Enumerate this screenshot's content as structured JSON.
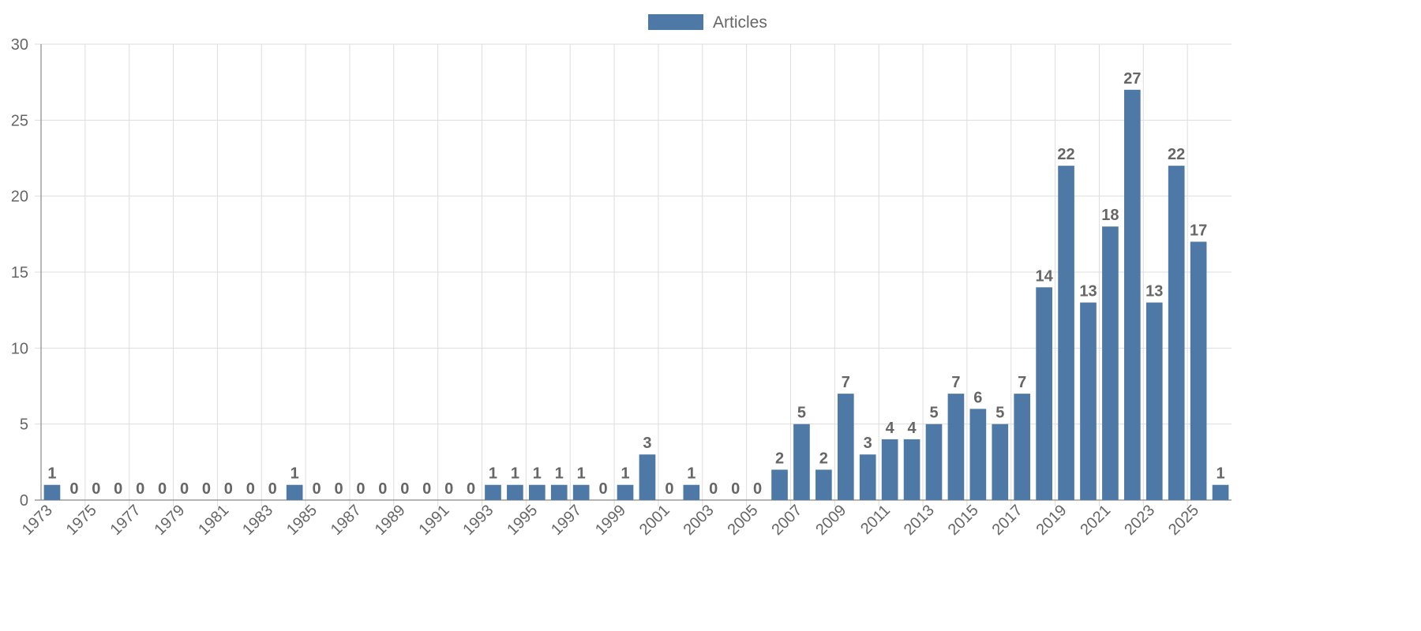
{
  "chart_data": {
    "type": "bar",
    "categories": [
      "1973",
      "1974",
      "1975",
      "1976",
      "1977",
      "1978",
      "1979",
      "1980",
      "1981",
      "1982",
      "1983",
      "1984",
      "1985",
      "1986",
      "1987",
      "1988",
      "1989",
      "1990",
      "1991",
      "1992",
      "1993",
      "1994",
      "1995",
      "1996",
      "1997",
      "1998",
      "1999",
      "2000",
      "2001",
      "2002",
      "2003",
      "2004",
      "2005",
      "2006",
      "2007",
      "2008",
      "2009",
      "2010",
      "2011",
      "2012",
      "2013",
      "2014",
      "2015",
      "2016",
      "2017",
      "2018",
      "2019",
      "2020",
      "2021",
      "2022",
      "2023",
      "2024",
      "2025",
      "2026"
    ],
    "x_tick_labels": [
      "1973",
      "1975",
      "1977",
      "1979",
      "1981",
      "1983",
      "1985",
      "1987",
      "1989",
      "1991",
      "1993",
      "1995",
      "1997",
      "1999",
      "2001",
      "2003",
      "2005",
      "2007",
      "2009",
      "2011",
      "2013",
      "2015",
      "2017",
      "2019",
      "2021",
      "2023",
      "2025"
    ],
    "series": [
      {
        "name": "Articles",
        "color": "#4e79a7",
        "values": [
          1,
          0,
          0,
          0,
          0,
          0,
          0,
          0,
          0,
          0,
          0,
          1,
          0,
          0,
          0,
          0,
          0,
          0,
          0,
          0,
          1,
          1,
          1,
          1,
          1,
          0,
          1,
          3,
          0,
          1,
          0,
          0,
          0,
          2,
          5,
          2,
          7,
          3,
          4,
          4,
          5,
          7,
          6,
          5,
          7,
          14,
          22,
          13,
          18,
          27,
          13,
          22,
          17,
          1
        ]
      }
    ],
    "title": "",
    "xlabel": "",
    "ylabel": "",
    "ylim": [
      0,
      30
    ],
    "y_ticks": [
      0,
      5,
      10,
      15,
      20,
      25,
      30
    ],
    "legend": {
      "position": "top-center",
      "entries": [
        "Articles"
      ]
    },
    "grid": true,
    "data_labels": true
  }
}
